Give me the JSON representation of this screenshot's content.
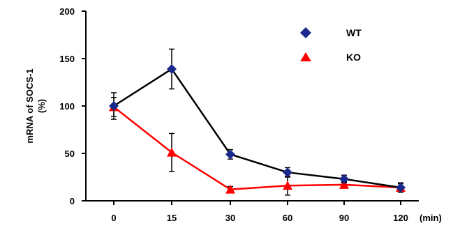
{
  "chart_data": {
    "type": "line",
    "x": [
      "0",
      "15",
      "30",
      "60",
      "90",
      "120"
    ],
    "x_unit_label": "(min)",
    "ylabel_line1": "mRNA of SOCS-1",
    "ylabel_line2": "(%)",
    "ylim": [
      0,
      200
    ],
    "yticks": [
      "0",
      "50",
      "100",
      "150",
      "200"
    ],
    "legend_position": "top-right",
    "series": [
      {
        "name": "WT",
        "marker": "diamond",
        "color": "#1a2a8c",
        "line_color": "#000000",
        "values": [
          100,
          139,
          49,
          30,
          23,
          14
        ],
        "errors": [
          14,
          21,
          5,
          5,
          4,
          5
        ]
      },
      {
        "name": "KO",
        "marker": "triangle",
        "color": "#ff0000",
        "line_color": "#ff0000",
        "values": [
          99,
          51,
          12,
          16,
          17,
          14
        ],
        "errors": [
          10,
          20,
          3,
          10,
          3,
          4
        ]
      }
    ]
  }
}
